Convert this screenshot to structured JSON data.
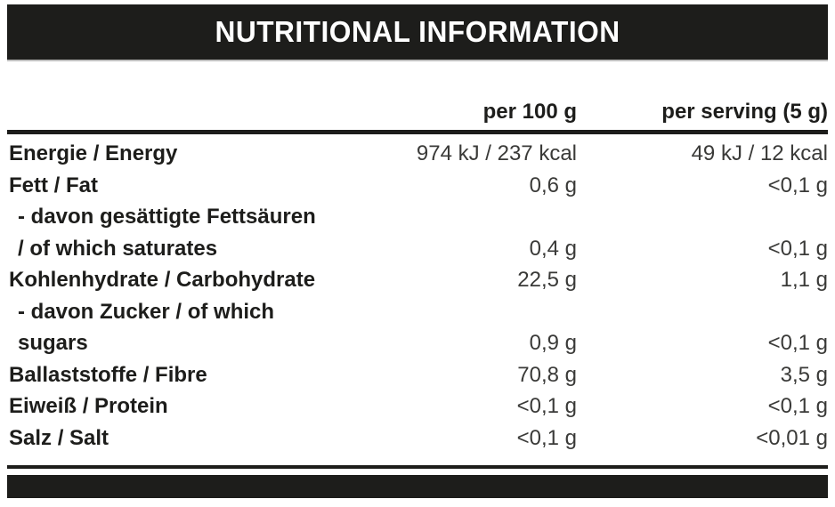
{
  "header": {
    "title": "NUTRITIONAL INFORMATION"
  },
  "colors": {
    "bar": "#1d1d1b",
    "label_text": "#1d1d1b",
    "value_text": "#3a3a38",
    "background": "#ffffff",
    "title_text": "#ffffff"
  },
  "table": {
    "columns": [
      "per 100 g",
      "per serving (5 g)"
    ],
    "rows": [
      {
        "label_lines": [
          "Energie / Energy"
        ],
        "indent": false,
        "per_100g": "974 kJ / 237 kcal",
        "per_serving": "49 kJ / 12 kcal"
      },
      {
        "label_lines": [
          "Fett / Fat"
        ],
        "indent": false,
        "per_100g": "0,6 g",
        "per_serving": "<0,1 g"
      },
      {
        "label_lines": [
          "- davon gesättigte Fettsäuren",
          "/ of which saturates"
        ],
        "indent": true,
        "per_100g": "0,4 g",
        "per_serving": "<0,1 g"
      },
      {
        "label_lines": [
          "Kohlenhydrate / Carbohydrate"
        ],
        "indent": false,
        "per_100g": "22,5 g",
        "per_serving": "1,1 g"
      },
      {
        "label_lines": [
          "- davon Zucker / of which",
          "sugars"
        ],
        "indent": true,
        "per_100g": "0,9 g",
        "per_serving": "<0,1 g"
      },
      {
        "label_lines": [
          "Ballaststoffe / Fibre"
        ],
        "indent": false,
        "per_100g": "70,8 g",
        "per_serving": "3,5 g"
      },
      {
        "label_lines": [
          "Eiweiß / Protein"
        ],
        "indent": false,
        "per_100g": "<0,1 g",
        "per_serving": "<0,1 g"
      },
      {
        "label_lines": [
          "Salz / Salt"
        ],
        "indent": false,
        "per_100g": "<0,1 g",
        "per_serving": "<0,01 g"
      }
    ]
  }
}
